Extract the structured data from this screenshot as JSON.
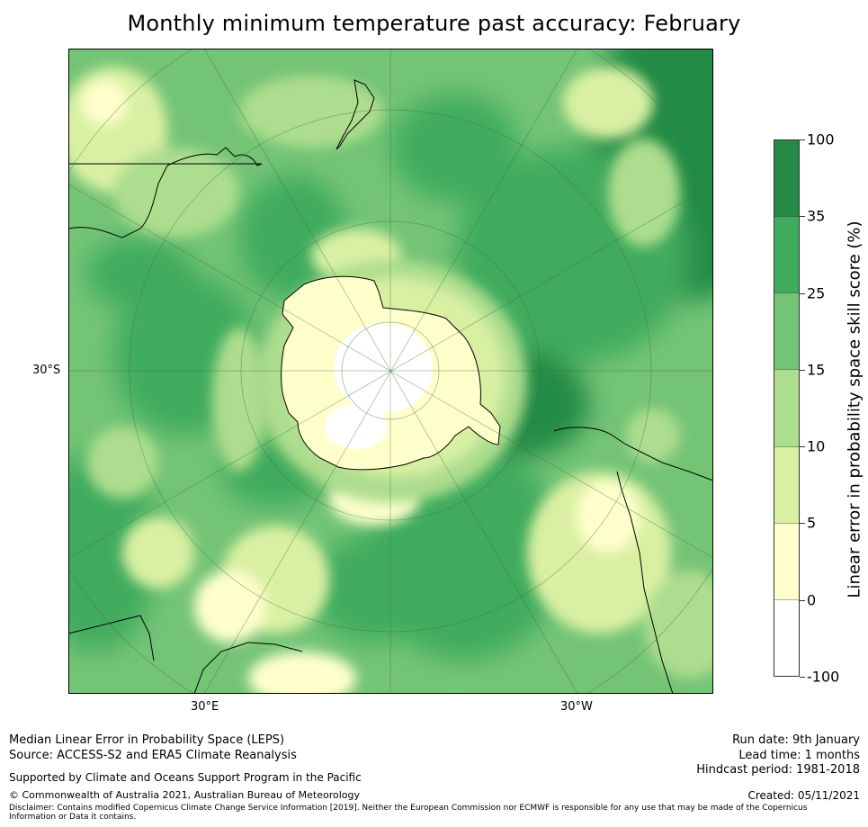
{
  "title": "Monthly minimum temperature past accuracy: February",
  "map": {
    "labels": {
      "lat_left": "30°S",
      "lon_left": "30°E",
      "lon_right": "30°W"
    },
    "icons": [
      "antarctica-landmass",
      "australia-coast",
      "new-zealand",
      "south-america-coast",
      "africa-coast"
    ]
  },
  "colorbar": {
    "title": "Linear error in probability space skill score (%)",
    "tick_labels": [
      "100",
      "35",
      "25",
      "15",
      "10",
      "5",
      "0",
      "-100"
    ],
    "colors": [
      "#238b45",
      "#41ab5d",
      "#74c476",
      "#addd8e",
      "#d9f0a3",
      "#ffffcc",
      "#ffffff"
    ]
  },
  "footer": {
    "left_line1": "Median Linear Error in Probability Space (LEPS)",
    "left_line2": "Source: ACCESS-S2 and ERA5 Climate Reanalysis",
    "supported": "Supported by Climate and Oceans Support Program in the Pacific",
    "copyright": "© Commonwealth of Australia 2021, Australian Bureau of Meteorology",
    "disclaimer_line1": "Disclaimer: Contains modified Copernicus Climate Change Service Information [2019]. Neither the European Commission nor ECMWF is responsible for any use that may be made of the Copernicus",
    "disclaimer_line2": "Information or Data it contains.",
    "run_date": "Run date: 9th January",
    "lead_time": "Lead time: 1 months",
    "hindcast": "Hindcast period: 1981-2018",
    "created": "Created: 05/11/2021"
  }
}
